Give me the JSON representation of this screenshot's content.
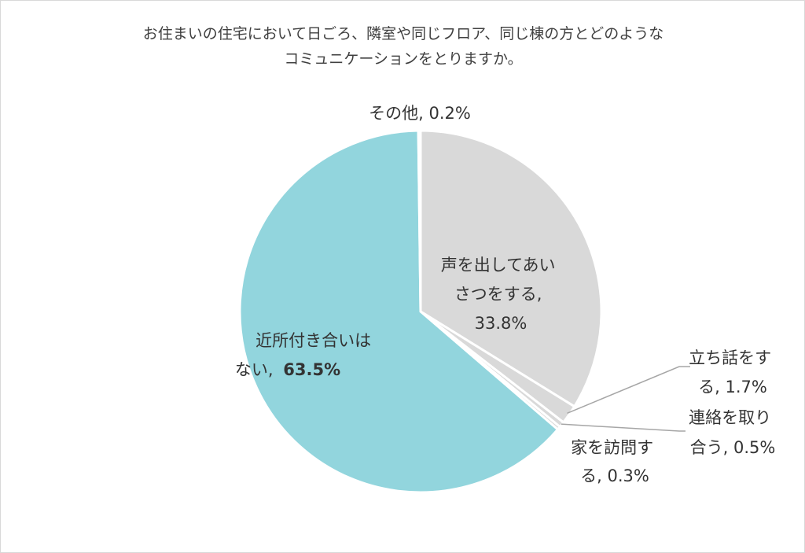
{
  "chart_data": {
    "type": "pie",
    "title_lines": [
      "お住まいの住宅において日ごろ、隣室や同じフロア、同じ棟の方とどのような",
      "コミュニケーションをとりますか。"
    ],
    "slices": [
      {
        "name_lines": [
          "声を出してあい",
          "さつをする,"
        ],
        "value_text": "33.8%",
        "value": 33.8,
        "color": "#d9d9d9"
      },
      {
        "name_lines": [
          "立ち話をす",
          "る, 1.7%"
        ],
        "value_text": "",
        "value": 1.7,
        "color": "#d9d9d9"
      },
      {
        "name_lines": [
          "連絡を取り",
          "合う, 0.5%"
        ],
        "value_text": "",
        "value": 0.5,
        "color": "#d9d9d9"
      },
      {
        "name_lines": [
          "家を訪問す",
          "る, 0.3%"
        ],
        "value_text": "",
        "value": 0.3,
        "color": "#d9d9d9"
      },
      {
        "name_lines": [
          "近所付き合いは",
          "ない,"
        ],
        "value_text": "63.5%",
        "value": 63.5,
        "color": "#92d5dd"
      },
      {
        "name_lines": [
          "その他, 0.2%"
        ],
        "value_text": "",
        "value": 0.2,
        "color": "#d9d9d9"
      }
    ],
    "start_angle_deg": 0,
    "direction": "clockwise",
    "slice_border_color": "#ffffff",
    "leader_line_color": "#a6a6a6",
    "legend": "none"
  }
}
